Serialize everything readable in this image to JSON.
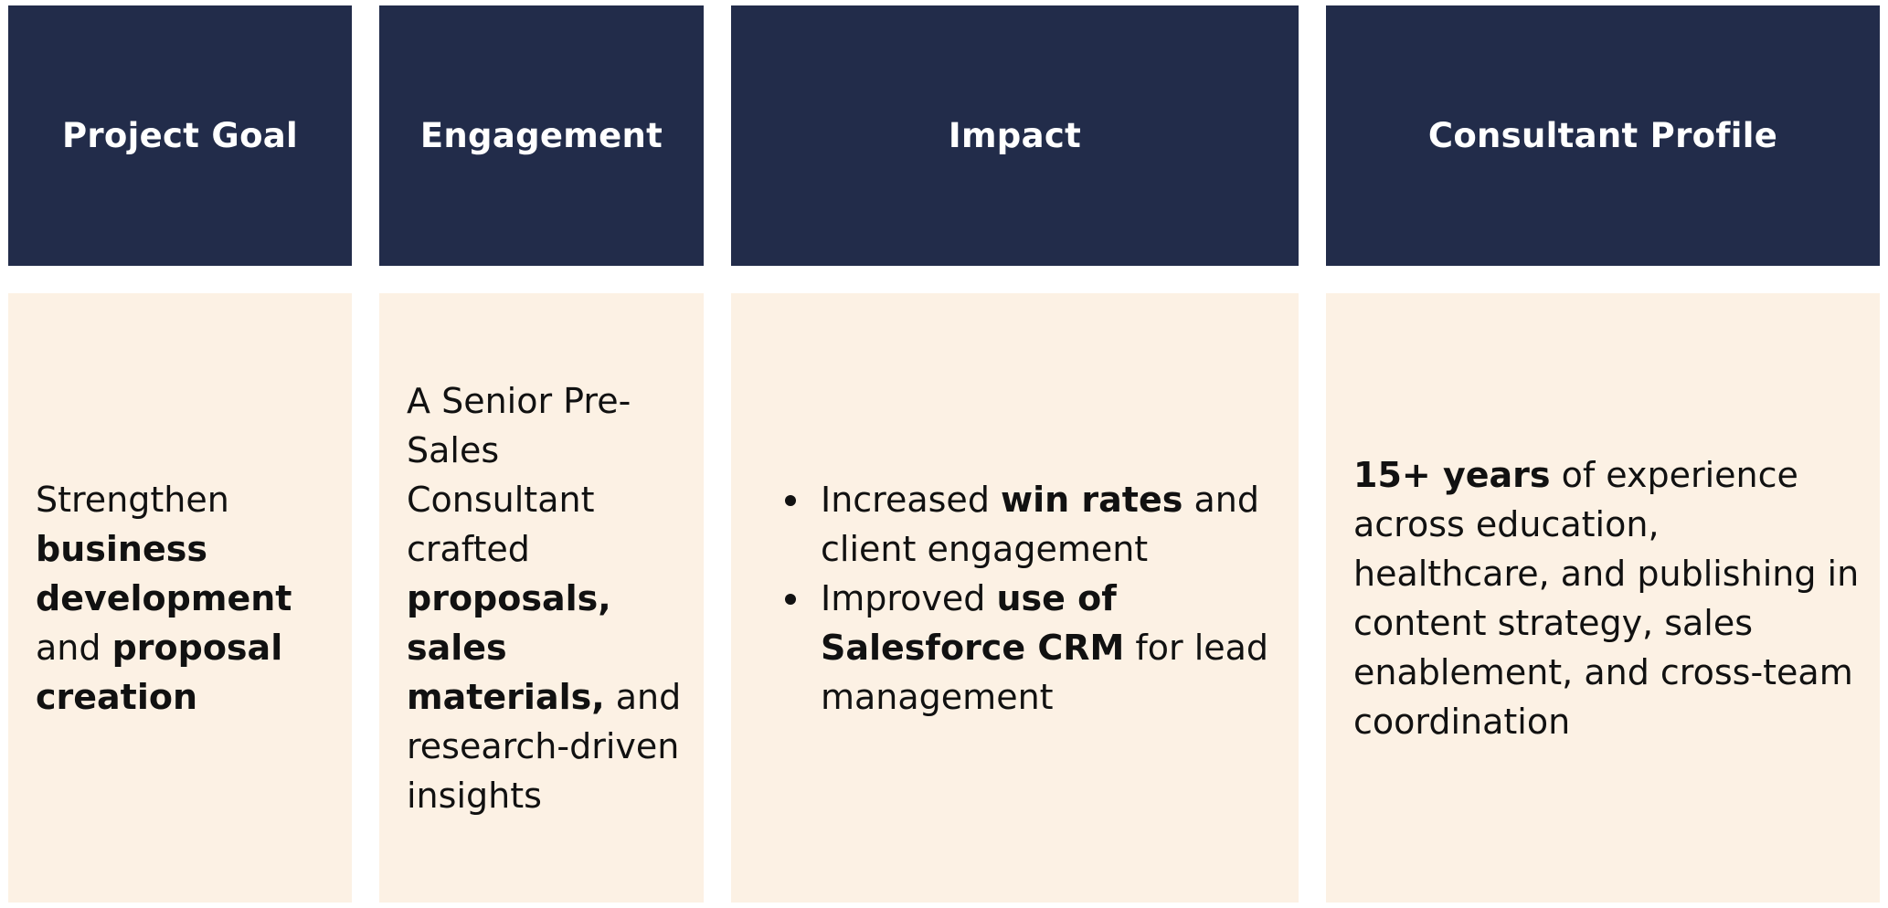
{
  "headers": {
    "project_goal": "Project Goal",
    "engagement": "Engagement",
    "impact": "Impact",
    "consultant_profile": "Consultant Profile"
  },
  "project_goal": {
    "t1": " Strengthen",
    "b1": "business development",
    "t2": " and ",
    "b2": "proposal creation"
  },
  "engagement": {
    "t1": "A Senior Pre-Sales Consultant crafted ",
    "b1": "proposals, sales materials,",
    "t2": " and research-driven insights"
  },
  "impact": {
    "items": [
      {
        "t1": "Increased ",
        "b1": "win rates",
        "t2": " and client engagement"
      },
      {
        "t1": "Improved ",
        "b1": "use of Salesforce CRM",
        "t2": " for lead management"
      }
    ]
  },
  "consultant_profile": {
    "b1": "15+ years",
    "t1": " of experience across education, healthcare, and publishing in content strategy, sales enablement, and cross-team coordination"
  },
  "colors": {
    "header_bg": "#222c4a",
    "body_bg": "#fcf1e4",
    "header_text": "#ffffff",
    "body_text": "#111111"
  }
}
